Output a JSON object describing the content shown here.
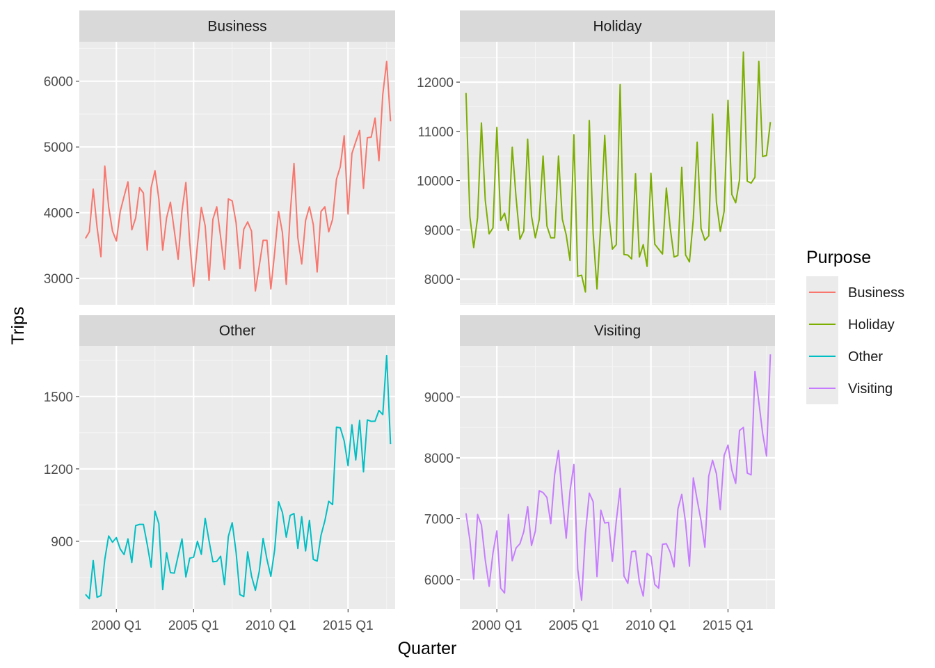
{
  "chart_data": {
    "type": "line",
    "facet_layout": "2x2 grid, free y scales, shared x axis",
    "xlabel": "Quarter",
    "ylabel": "Trips",
    "x_range": [
      "1998 Q1",
      "2017 Q4"
    ],
    "x_ticks": [
      "2000 Q1",
      "2005 Q1",
      "2010 Q1",
      "2015 Q1"
    ],
    "grid": true,
    "legend": {
      "title": "Purpose",
      "position": "right",
      "entries": [
        {
          "name": "Business",
          "color": "#F8766D"
        },
        {
          "name": "Holiday",
          "color": "#7CAE00"
        },
        {
          "name": "Other",
          "color": "#00BFC4"
        },
        {
          "name": "Visiting",
          "color": "#C77CFF"
        }
      ]
    },
    "panels": [
      {
        "name": "Business",
        "color": "#F8766D",
        "ylim": [
          2600,
          6600
        ],
        "y_ticks": [
          3000,
          4000,
          5000,
          6000
        ],
        "start": "1998 Q1",
        "values": [
          3610,
          3710,
          4360,
          3780,
          3330,
          4710,
          4090,
          3720,
          3570,
          4020,
          4250,
          4470,
          3740,
          3920,
          4380,
          4300,
          3430,
          4380,
          4640,
          4210,
          3430,
          3920,
          4160,
          3730,
          3290,
          4030,
          4460,
          3550,
          2880,
          3510,
          4080,
          3800,
          2970,
          3900,
          4090,
          3630,
          3140,
          4210,
          4180,
          3850,
          3150,
          3750,
          3860,
          3720,
          2810,
          3190,
          3580,
          3580,
          2840,
          3400,
          4020,
          3700,
          2910,
          3970,
          4750,
          3620,
          3220,
          3880,
          4090,
          3820,
          3100,
          4020,
          4090,
          3710,
          3900,
          4510,
          4700,
          5170,
          3980,
          4900,
          5080,
          5250,
          4370,
          5140,
          5150,
          5440,
          4790,
          5800,
          6300,
          5390
        ]
      },
      {
        "name": "Holiday",
        "color": "#7CAE00",
        "ylim": [
          7480,
          12820
        ],
        "y_ticks": [
          8000,
          9000,
          10000,
          11000,
          12000
        ],
        "start": "1998 Q1",
        "values": [
          11780,
          9270,
          8640,
          9250,
          11170,
          9600,
          8920,
          9040,
          11080,
          9190,
          9340,
          8990,
          10680,
          9650,
          8810,
          8980,
          10840,
          9280,
          8840,
          9210,
          10500,
          9080,
          8840,
          8840,
          10500,
          9220,
          8900,
          8380,
          10930,
          8060,
          8080,
          7740,
          11220,
          8930,
          7800,
          9150,
          10920,
          9370,
          8610,
          8700,
          11950,
          8500,
          8490,
          8410,
          10140,
          8450,
          8700,
          8260,
          10150,
          8710,
          8610,
          8510,
          9850,
          9040,
          8450,
          8480,
          10270,
          8490,
          8350,
          9220,
          10780,
          9030,
          8790,
          8880,
          11350,
          9560,
          8970,
          9380,
          11630,
          9720,
          9550,
          10020,
          12610,
          9990,
          9950,
          10070,
          12420,
          10490,
          10510,
          11190
        ]
      },
      {
        "name": "Other",
        "color": "#00BFC4",
        "ylim": [
          620,
          1710
        ],
        "y_ticks": [
          900,
          1200,
          1500
        ],
        "start": "1998 Q1",
        "values": [
          680,
          662,
          820,
          668,
          675,
          825,
          922,
          896,
          915,
          868,
          845,
          910,
          812,
          965,
          970,
          970,
          886,
          793,
          1025,
          973,
          700,
          853,
          770,
          768,
          840,
          910,
          752,
          830,
          834,
          900,
          846,
          995,
          902,
          815,
          817,
          838,
          720,
          920,
          977,
          855,
          679,
          671,
          856,
          756,
          697,
          775,
          912,
          825,
          755,
          865,
          1064,
          1020,
          917,
          1007,
          1015,
          870,
          1002,
          860,
          987,
          825,
          818,
          925,
          985,
          1066,
          1052,
          1373,
          1370,
          1316,
          1213,
          1383,
          1237,
          1401,
          1188,
          1403,
          1397,
          1398,
          1442,
          1425,
          1670,
          1303
        ]
      },
      {
        "name": "Visiting",
        "color": "#C77CFF",
        "ylim": [
          5520,
          9840
        ],
        "y_ticks": [
          6000,
          7000,
          8000,
          9000
        ],
        "start": "1998 Q1",
        "values": [
          7090,
          6650,
          6010,
          7070,
          6900,
          6320,
          5890,
          6440,
          6800,
          5860,
          5780,
          7070,
          6310,
          6520,
          6590,
          6790,
          7200,
          6560,
          6800,
          7460,
          7430,
          7350,
          6920,
          7720,
          8120,
          7340,
          6680,
          7460,
          7890,
          6170,
          5660,
          6760,
          7420,
          7280,
          6050,
          7140,
          6930,
          6940,
          6300,
          6960,
          7500,
          6060,
          5940,
          6460,
          6470,
          5960,
          5730,
          6430,
          6380,
          5920,
          5860,
          6580,
          6590,
          6450,
          6210,
          7160,
          7400,
          6930,
          6220,
          7670,
          7310,
          6970,
          6530,
          7700,
          7960,
          7740,
          7150,
          8040,
          8210,
          7800,
          7580,
          8450,
          8500,
          7750,
          7720,
          9420,
          8920,
          8400,
          8030,
          9700
        ]
      }
    ]
  }
}
